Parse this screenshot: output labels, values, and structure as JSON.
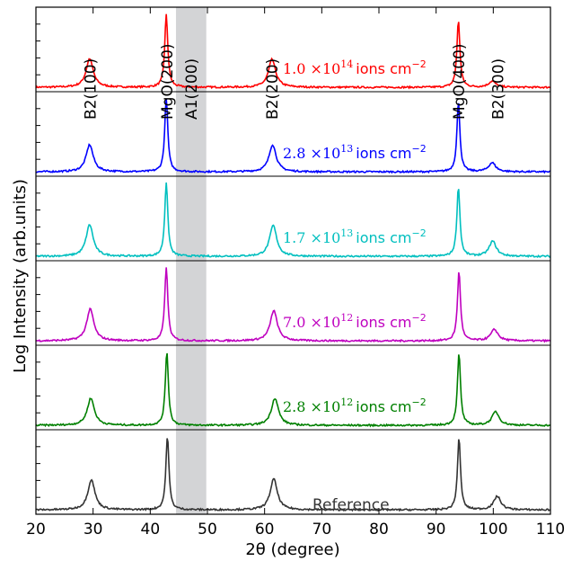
{
  "chart_data": {
    "type": "line",
    "title": "",
    "xlabel": "2θ (degree)",
    "ylabel": "Log Intensity (arb.units)",
    "xlim": [
      20,
      110
    ],
    "xticks": [
      20,
      30,
      40,
      50,
      60,
      70,
      80,
      90,
      100,
      110
    ],
    "shaded_band": {
      "from": 44.5,
      "to": 49.8,
      "color": "#d3d4d6",
      "label": "A1(200)"
    },
    "peak_labels": [
      {
        "text": "B2(100)",
        "x": 29.5
      },
      {
        "text": "MgO(200)",
        "x": 42.9
      },
      {
        "text": "A1(200)",
        "x": 47.2
      },
      {
        "text": "B2(200)",
        "x": 61.3
      },
      {
        "text": "MgO(400)",
        "x": 94.0
      },
      {
        "text": "B2(300)",
        "x": 100.8
      }
    ],
    "series": [
      {
        "fluence_mantissa": "1.0",
        "fluence_exp": "14",
        "unit": "ions cm",
        "color": "#ff0000",
        "peaks": [
          {
            "x": 29.4,
            "h": 0.38
          },
          {
            "x": 42.8,
            "h": 0.96
          },
          {
            "x": 61.3,
            "h": 0.37
          },
          {
            "x": 93.9,
            "h": 0.88
          },
          {
            "x": 99.8,
            "h": 0.08
          }
        ]
      },
      {
        "fluence_mantissa": "2.8",
        "fluence_exp": "13",
        "unit": "ions cm",
        "color": "#0000ff",
        "peaks": [
          {
            "x": 29.4,
            "h": 0.36
          },
          {
            "x": 42.8,
            "h": 0.98
          },
          {
            "x": 61.4,
            "h": 0.36
          },
          {
            "x": 93.9,
            "h": 0.92
          },
          {
            "x": 99.8,
            "h": 0.12
          }
        ]
      },
      {
        "fluence_mantissa": "1.7",
        "fluence_exp": "13",
        "unit": "ions cm",
        "color": "#00bfbf",
        "peaks": [
          {
            "x": 29.4,
            "h": 0.42
          },
          {
            "x": 42.8,
            "h": 0.98
          },
          {
            "x": 61.5,
            "h": 0.41
          },
          {
            "x": 93.9,
            "h": 0.92
          },
          {
            "x": 99.9,
            "h": 0.2
          }
        ]
      },
      {
        "fluence_mantissa": "7.0",
        "fluence_exp": "12",
        "unit": "ions cm",
        "color": "#bf00bf",
        "peaks": [
          {
            "x": 29.5,
            "h": 0.42
          },
          {
            "x": 42.8,
            "h": 0.98
          },
          {
            "x": 61.6,
            "h": 0.4
          },
          {
            "x": 94.0,
            "h": 0.92
          },
          {
            "x": 100.2,
            "h": 0.15
          }
        ]
      },
      {
        "fluence_mantissa": "2.8",
        "fluence_exp": "12",
        "unit": "ions cm",
        "color": "#008000",
        "peaks": [
          {
            "x": 29.6,
            "h": 0.36
          },
          {
            "x": 42.9,
            "h": 0.98
          },
          {
            "x": 61.8,
            "h": 0.36
          },
          {
            "x": 94.0,
            "h": 0.95
          },
          {
            "x": 100.4,
            "h": 0.18
          }
        ]
      },
      {
        "name": "Reference",
        "color": "#333333",
        "peaks": [
          {
            "x": 29.7,
            "h": 0.4
          },
          {
            "x": 43.0,
            "h": 0.98
          },
          {
            "x": 61.6,
            "h": 0.41
          },
          {
            "x": 94.0,
            "h": 0.95
          },
          {
            "x": 100.7,
            "h": 0.18
          }
        ]
      }
    ]
  }
}
